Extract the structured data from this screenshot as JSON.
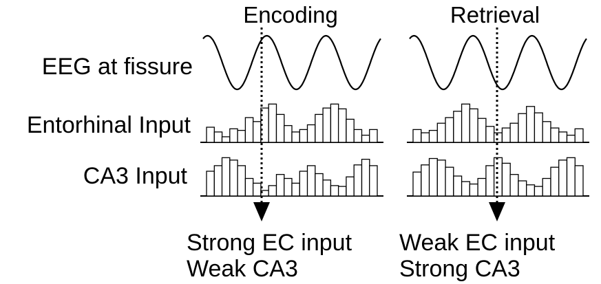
{
  "panels": [
    {
      "title": "Encoding",
      "caption_line1": "Strong EC input",
      "caption_line2": "Weak CA3",
      "wave_phase": 0.5,
      "entorhinal_bars": [
        0.38,
        0.26,
        0.14,
        0.34,
        0.3,
        0.62,
        0.52,
        0.86,
        0.96,
        0.7,
        0.42,
        0.26,
        0.32,
        0.44,
        0.7,
        0.86,
        0.96,
        0.84,
        0.58,
        0.32,
        0.18,
        0.32
      ],
      "ca3_bars": [
        0.62,
        0.76,
        0.96,
        0.9,
        0.76,
        0.44,
        0.32,
        0.14,
        0.26,
        0.54,
        0.44,
        0.32,
        0.62,
        0.76,
        0.56,
        0.4,
        0.26,
        0.24,
        0.48,
        0.78,
        0.92,
        0.76
      ]
    },
    {
      "title": "Retrieval",
      "caption_line1": "Weak EC input",
      "caption_line2": "Strong CA3",
      "wave_phase": 0,
      "entorhinal_bars": [
        0.32,
        0.24,
        0.3,
        0.48,
        0.62,
        0.78,
        0.96,
        0.84,
        0.6,
        0.4,
        0.24,
        0.36,
        0.48,
        0.72,
        0.9,
        0.74,
        0.52,
        0.36,
        0.26,
        0.18,
        0.34
      ],
      "ca3_bars": [
        0.6,
        0.78,
        0.94,
        0.9,
        0.72,
        0.5,
        0.36,
        0.3,
        0.44,
        0.76,
        0.96,
        0.82,
        0.54,
        0.38,
        0.28,
        0.24,
        0.44,
        0.72,
        0.9,
        0.96,
        0.76
      ]
    }
  ],
  "rows": {
    "eeg_label": "EEG at fissure",
    "entorhinal_label": "Entorhinal Input",
    "ca3_label": "CA3 Input"
  }
}
